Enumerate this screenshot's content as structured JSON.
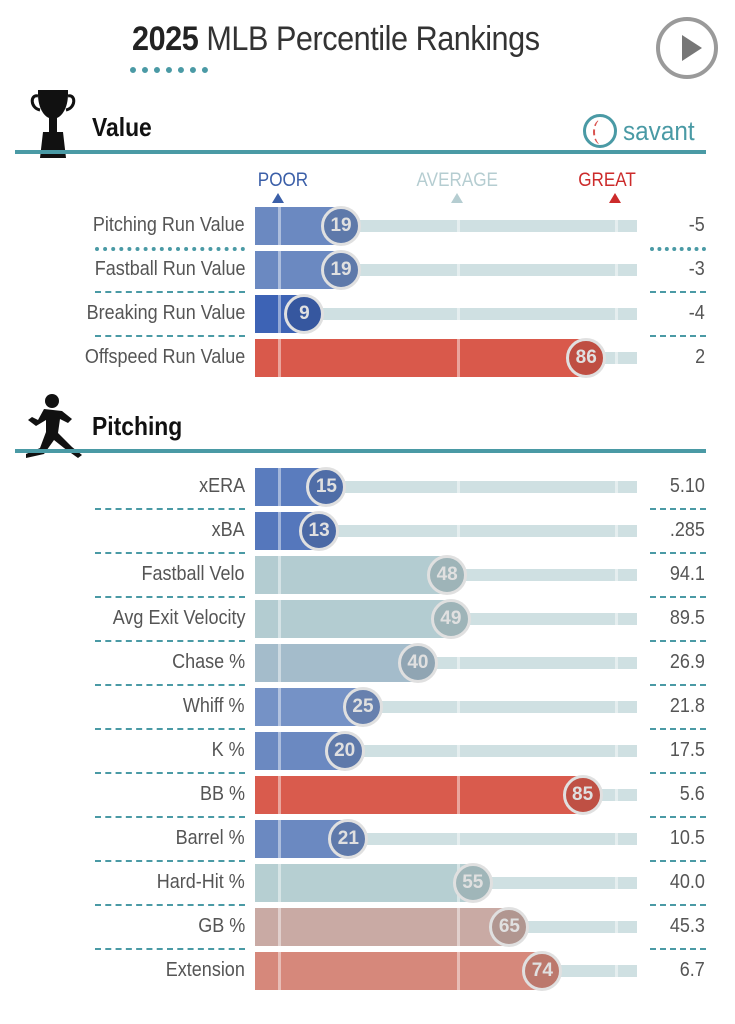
{
  "header": {
    "year": "2025",
    "title": "MLB Percentile Rankings"
  },
  "brand": "savant",
  "scale": {
    "poor": "POOR",
    "average": "AVERAGE",
    "great": "GREAT",
    "poor_color": "#3b5fa8",
    "average_color": "#b5cdd1",
    "great_color": "#cc2b2b"
  },
  "sections": [
    {
      "title": "Value",
      "icon": "trophy-icon",
      "rows": [
        {
          "label": "Pitching Run Value",
          "percentile": 19,
          "value": "-5",
          "color": "#6b89c1"
        },
        {
          "label": "Fastball Run Value",
          "percentile": 19,
          "value": "-3",
          "color": "#6b89c1"
        },
        {
          "label": "Breaking Run Value",
          "percentile": 9,
          "value": "-4",
          "color": "#3d63b5"
        },
        {
          "label": "Offspeed Run Value",
          "percentile": 86,
          "value": "2",
          "color": "#d9594b"
        }
      ]
    },
    {
      "title": "Pitching",
      "icon": "pitcher-icon",
      "rows": [
        {
          "label": "xERA",
          "percentile": 15,
          "value": "5.10",
          "color": "#5a7cbe"
        },
        {
          "label": "xBA",
          "percentile": 13,
          "value": ".285",
          "color": "#5577bc"
        },
        {
          "label": "Fastball Velo",
          "percentile": 48,
          "value": "94.1",
          "color": "#b3ccd1"
        },
        {
          "label": "Avg Exit Velocity",
          "percentile": 49,
          "value": "89.5",
          "color": "#b3ccd1"
        },
        {
          "label": "Chase %",
          "percentile": 40,
          "value": "26.9",
          "color": "#a4bccb"
        },
        {
          "label": "Whiff %",
          "percentile": 25,
          "value": "21.8",
          "color": "#7592c6"
        },
        {
          "label": "K %",
          "percentile": 20,
          "value": "17.5",
          "color": "#6b89c1"
        },
        {
          "label": "BB %",
          "percentile": 85,
          "value": "5.6",
          "color": "#d95b4d"
        },
        {
          "label": "Barrel %",
          "percentile": 21,
          "value": "10.5",
          "color": "#6b89c1"
        },
        {
          "label": "Hard-Hit %",
          "percentile": 55,
          "value": "40.0",
          "color": "#b6cfd2"
        },
        {
          "label": "GB %",
          "percentile": 65,
          "value": "45.3",
          "color": "#c9aaa4"
        },
        {
          "label": "Extension",
          "percentile": 74,
          "value": "6.7",
          "color": "#d6887b"
        }
      ]
    }
  ]
}
